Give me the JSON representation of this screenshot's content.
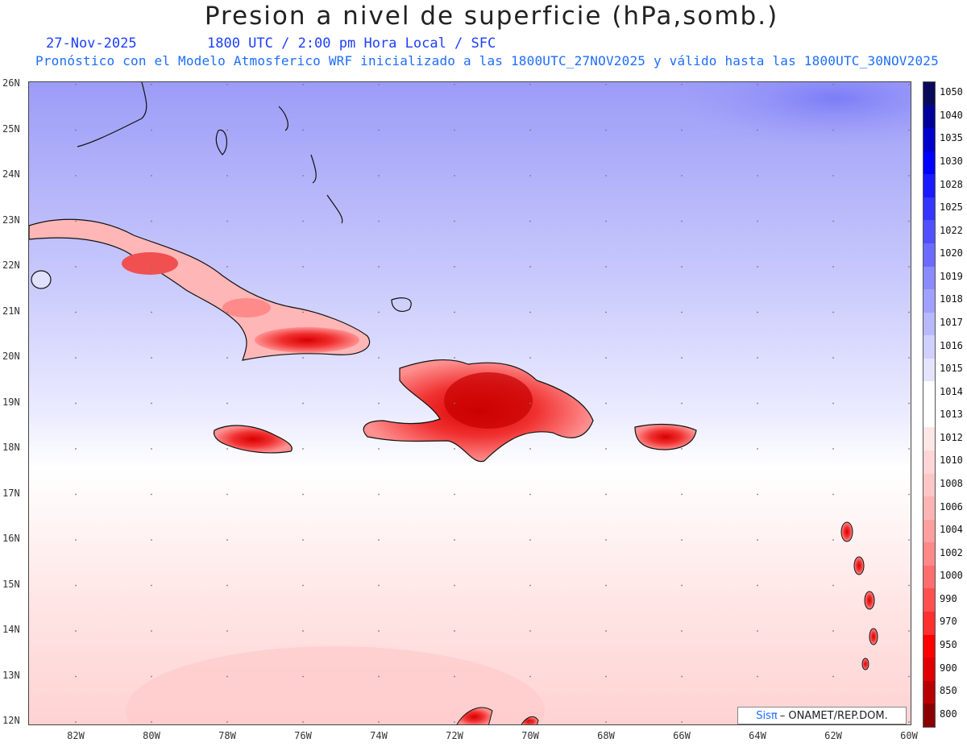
{
  "title": "Presion a nivel de superficie (hPa,somb.)",
  "date": "27-Nov-2025",
  "time_line": "1800 UTC / 2:00 pm Hora Local / SFC",
  "model_line": "Pronóstico con el Modelo Atmosferico WRF inicializado a las 1800UTC_27NOV2025 y válido hasta las  1800UTC_30NOV2025",
  "credit": {
    "brand": "Sisπ",
    "text": "– ONAMET/REP.DOM."
  },
  "latitudes": [
    "26N",
    "25N",
    "24N",
    "23N",
    "22N",
    "21N",
    "20N",
    "19N",
    "18N",
    "17N",
    "16N",
    "15N",
    "14N",
    "13N",
    "12N"
  ],
  "longitudes": [
    "82W",
    "80W",
    "78W",
    "76W",
    "74W",
    "72W",
    "70W",
    "68W",
    "66W",
    "64W",
    "62W",
    "60W"
  ],
  "colorbar": {
    "labels": [
      "1050",
      "1040",
      "1035",
      "1030",
      "1028",
      "1025",
      "1022",
      "1020",
      "1019",
      "1018",
      "1017",
      "1016",
      "1015",
      "1014",
      "1013",
      "1012",
      "1010",
      "1008",
      "1006",
      "1004",
      "1002",
      "1000",
      "990",
      "970",
      "950",
      "900",
      "850",
      "800"
    ],
    "colors": [
      "#0a0a5a",
      "#00009a",
      "#0000cc",
      "#0000ff",
      "#1a1aff",
      "#3535ff",
      "#5050ff",
      "#6b6bff",
      "#8a8aff",
      "#a0a0ff",
      "#b8b8ff",
      "#d0d0ff",
      "#e4e4ff",
      "#ffffff",
      "#ffffff",
      "#ffe6e6",
      "#ffd6d6",
      "#ffc6c6",
      "#ffb4b4",
      "#ffa0a0",
      "#ff8888",
      "#ff6e6e",
      "#ff5050",
      "#ff3030",
      "#ff0000",
      "#e00000",
      "#b80000",
      "#8a0000"
    ]
  },
  "colors": {
    "title": "#222222",
    "subtitle": "#1e40ff",
    "info": "#1e6dff"
  }
}
